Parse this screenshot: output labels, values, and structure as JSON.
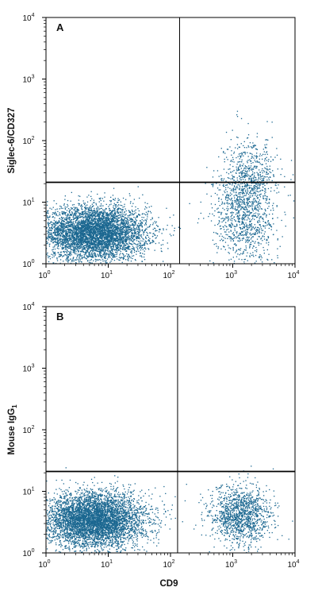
{
  "chart_data": [
    {
      "type": "scatter",
      "panel_letter": "A",
      "ylabel": "Siglec-6/CD327",
      "xlabel": "",
      "scale": "log",
      "xlim": [
        1,
        10000
      ],
      "ylim": [
        1,
        10000
      ],
      "x_ticks": [
        {
          "base": "10",
          "exp": "0"
        },
        {
          "base": "10",
          "exp": "1"
        },
        {
          "base": "10",
          "exp": "2"
        },
        {
          "base": "10",
          "exp": "3"
        },
        {
          "base": "10",
          "exp": "4"
        }
      ],
      "y_ticks": [
        {
          "base": "10",
          "exp": "0"
        },
        {
          "base": "10",
          "exp": "1"
        },
        {
          "base": "10",
          "exp": "2"
        },
        {
          "base": "10",
          "exp": "3"
        },
        {
          "base": "10",
          "exp": "4"
        }
      ],
      "quadrant_gate": {
        "x": 140,
        "y": 21
      },
      "point_color": "#1c6891",
      "populations": [
        {
          "center_x": 6,
          "center_y": 3.2,
          "log_spread_x": 0.42,
          "log_spread_y": 0.22,
          "events": 5200
        },
        {
          "center_x": 1500,
          "center_y": 6.5,
          "log_spread_x": 0.25,
          "log_spread_y": 0.42,
          "events": 1100
        },
        {
          "center_x": 2000,
          "center_y": 30,
          "log_spread_x": 0.2,
          "log_spread_y": 0.3,
          "events": 420
        }
      ],
      "grid": false,
      "legend": "none"
    },
    {
      "type": "scatter",
      "panel_letter": "B",
      "ylabel": "Mouse IgG1",
      "xlabel": "CD9",
      "scale": "log",
      "xlim": [
        1,
        10000
      ],
      "ylim": [
        1,
        10000
      ],
      "x_ticks": [
        {
          "base": "10",
          "exp": "0"
        },
        {
          "base": "10",
          "exp": "1"
        },
        {
          "base": "10",
          "exp": "2"
        },
        {
          "base": "10",
          "exp": "3"
        },
        {
          "base": "10",
          "exp": "4"
        }
      ],
      "y_ticks": [
        {
          "base": "10",
          "exp": "0"
        },
        {
          "base": "10",
          "exp": "1"
        },
        {
          "base": "10",
          "exp": "2"
        },
        {
          "base": "10",
          "exp": "3"
        },
        {
          "base": "10",
          "exp": "4"
        }
      ],
      "quadrant_gate": {
        "x": 130,
        "y": 21
      },
      "point_color": "#1c6891",
      "populations": [
        {
          "center_x": 6,
          "center_y": 3.5,
          "log_spread_x": 0.4,
          "log_spread_y": 0.22,
          "events": 5200
        },
        {
          "center_x": 1300,
          "center_y": 4,
          "log_spread_x": 0.25,
          "log_spread_y": 0.25,
          "events": 1300
        }
      ],
      "grid": false,
      "legend": "none"
    }
  ]
}
